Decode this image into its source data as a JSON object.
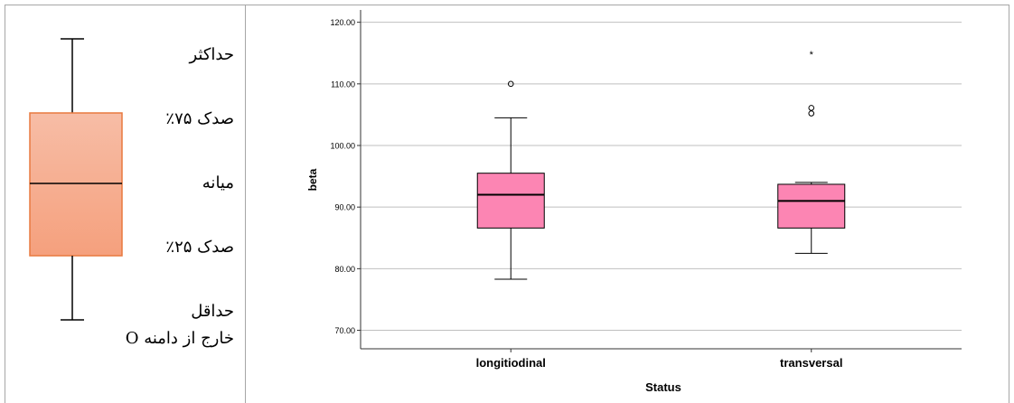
{
  "legend": {
    "labels": {
      "max": "حداکثر",
      "q3": "صدک ۷۵٪",
      "median": "میانه",
      "q1": "صدک ۲۵٪",
      "min": "حداقل",
      "outlier": "خارج از دامنه O"
    },
    "box_gradient_top": "#f7bda6",
    "box_gradient_bottom": "#f5a07d",
    "box_border": "#e8793f"
  },
  "chart_data": {
    "type": "boxplot",
    "xlabel": "Status",
    "ylabel": "beta",
    "ylim": [
      67,
      122
    ],
    "yticks": [
      70,
      80,
      90,
      100,
      110,
      120
    ],
    "ytick_labels": [
      "70.00",
      "80.00",
      "90.00",
      "100.00",
      "110.00",
      "120.00"
    ],
    "grid": true,
    "box_color": "#fc85b3",
    "categories": [
      "longitiodinal",
      "transversal"
    ],
    "boxes": [
      {
        "category": "longitiodinal",
        "min": 78.3,
        "q1": 86.6,
        "median": 92.0,
        "q3": 95.5,
        "max": 104.5,
        "outliers": [
          110.0
        ],
        "extremes": []
      },
      {
        "category": "transversal",
        "min": 82.5,
        "q1": 86.6,
        "median": 91.0,
        "q3": 93.7,
        "max": 94.0,
        "outliers": [
          106.1,
          105.2
        ],
        "extremes": [
          114.8
        ]
      }
    ]
  }
}
